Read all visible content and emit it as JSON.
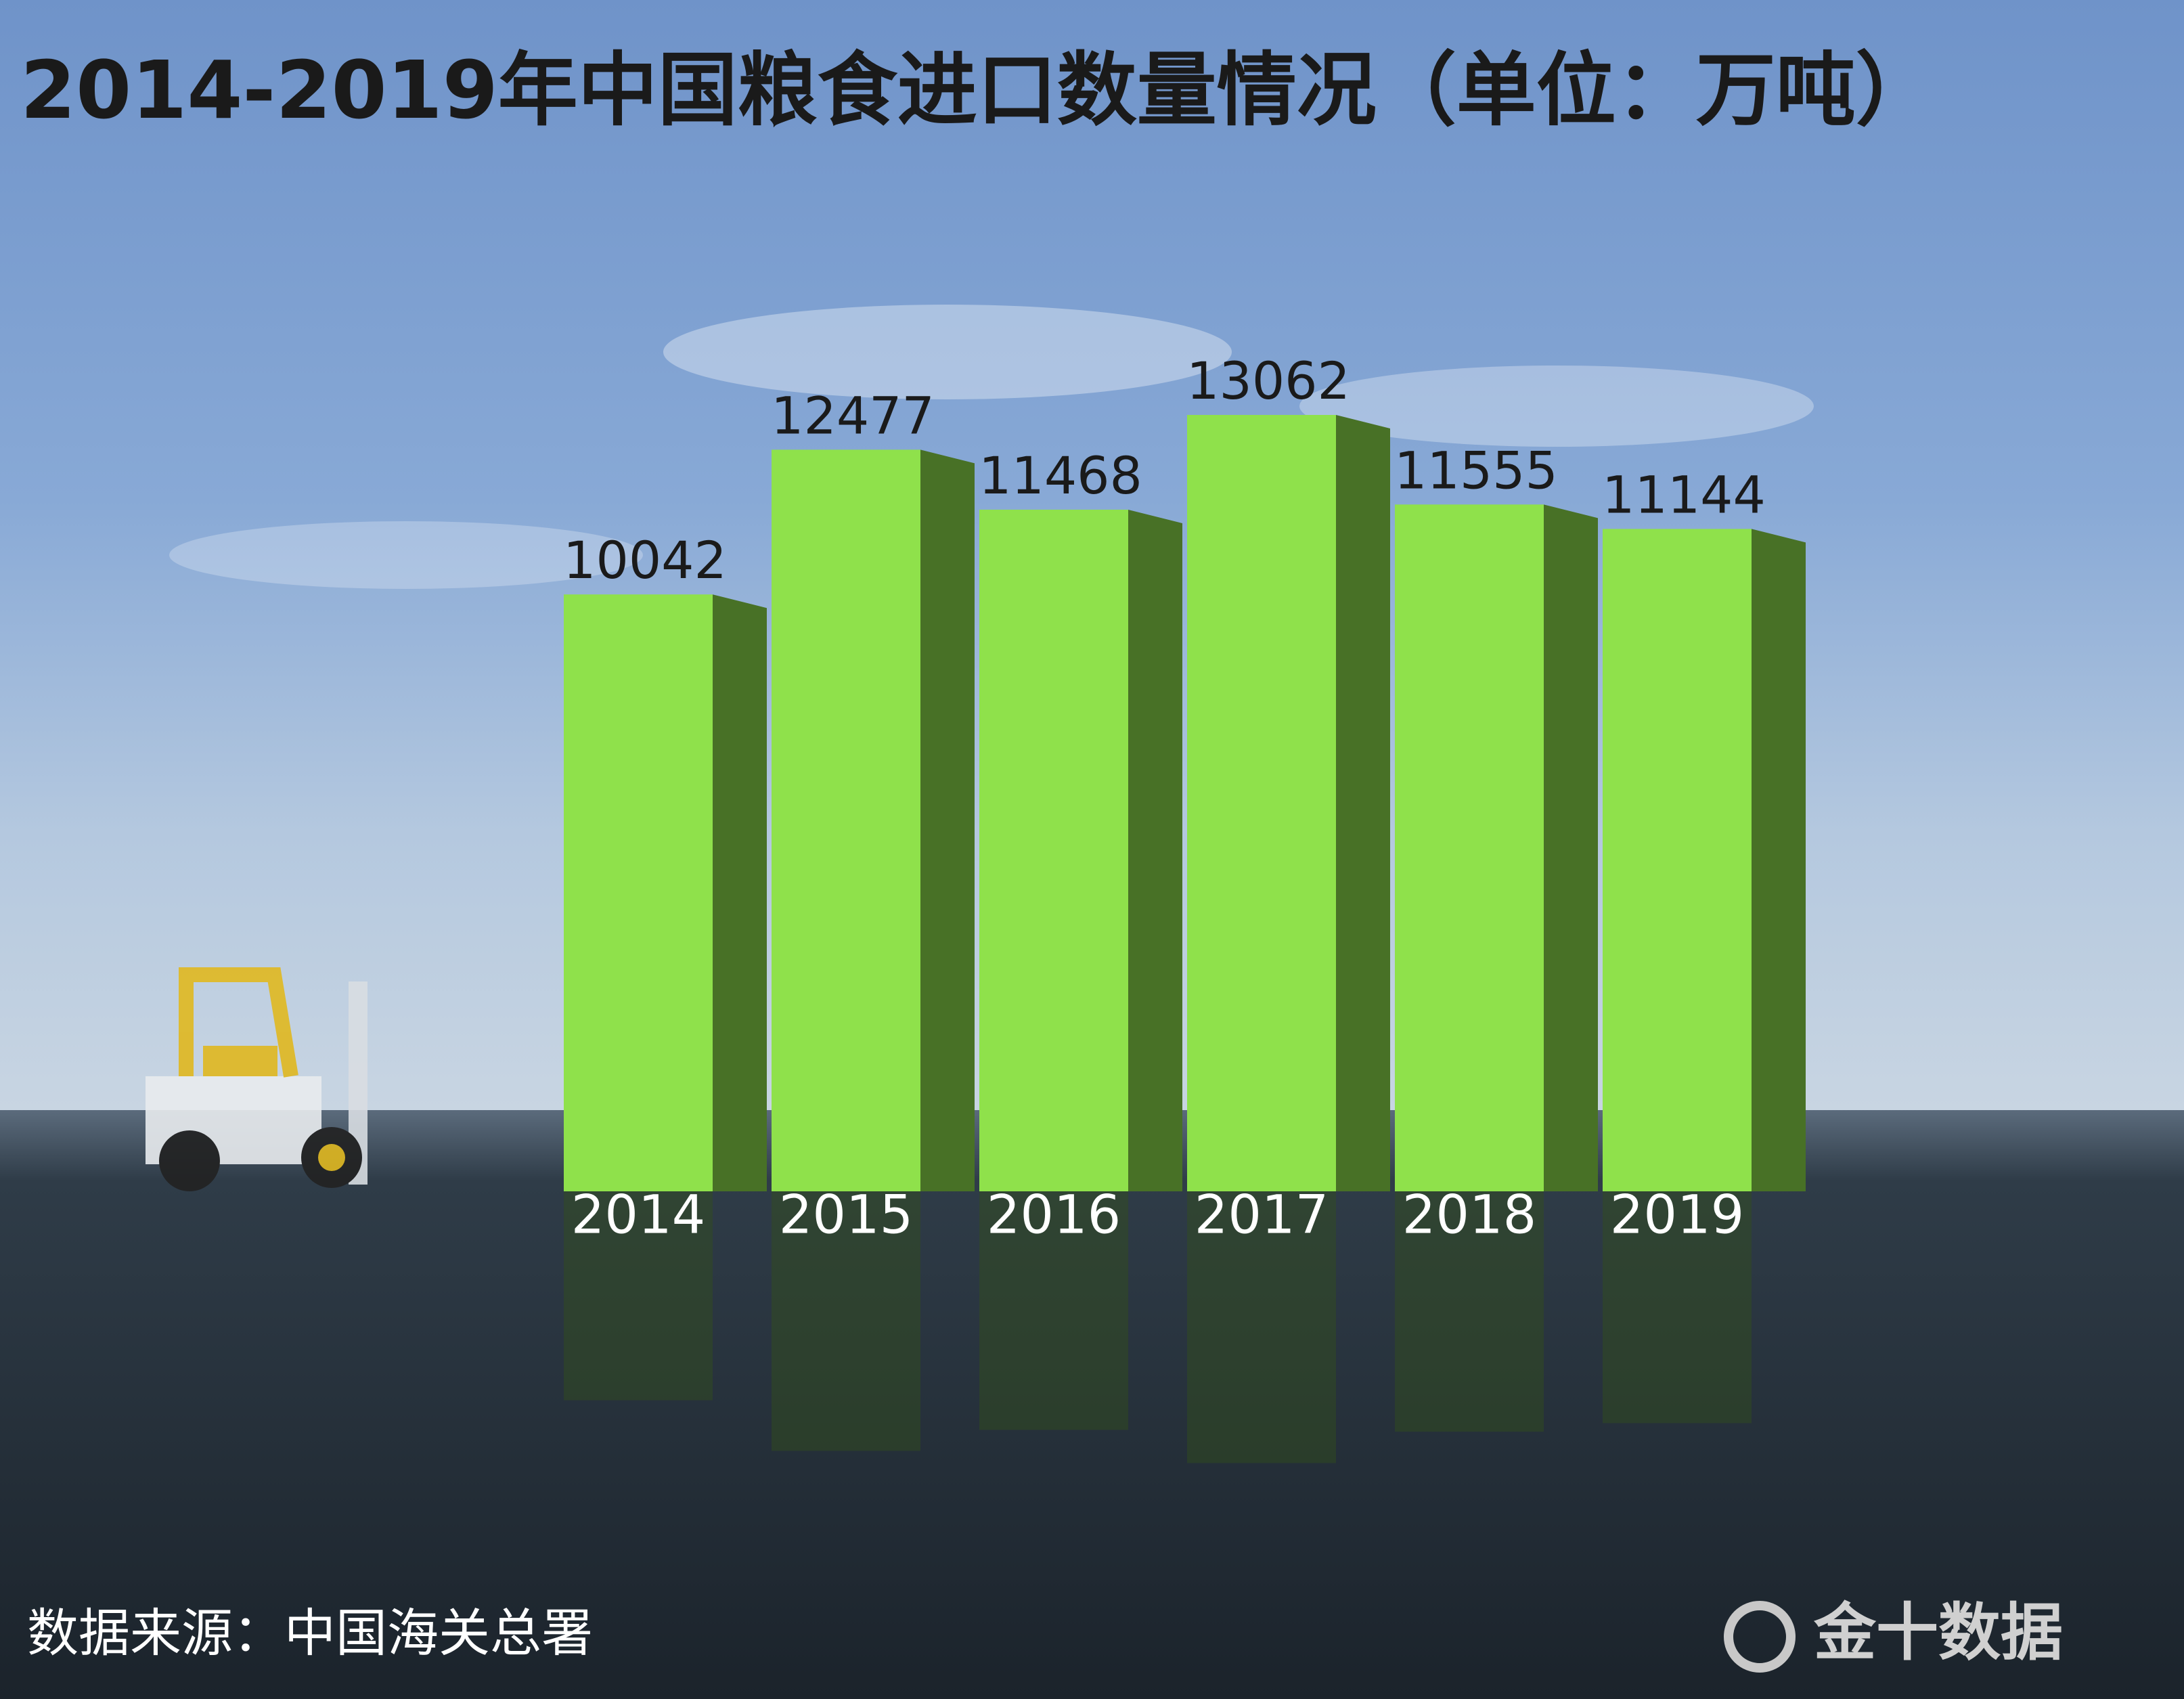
{
  "chart_data": {
    "type": "bar",
    "title": "2014-2019年中国粮食进口数量情况（单位：万吨）",
    "categories": [
      "2014",
      "2015",
      "2016",
      "2017",
      "2018",
      "2019"
    ],
    "values": [
      10042,
      12477,
      11468,
      13062,
      11555,
      11144
    ],
    "color": "#8fe14b"
  },
  "footer": {
    "source": "数据来源：中国海关总署",
    "logo": "金十数据"
  }
}
